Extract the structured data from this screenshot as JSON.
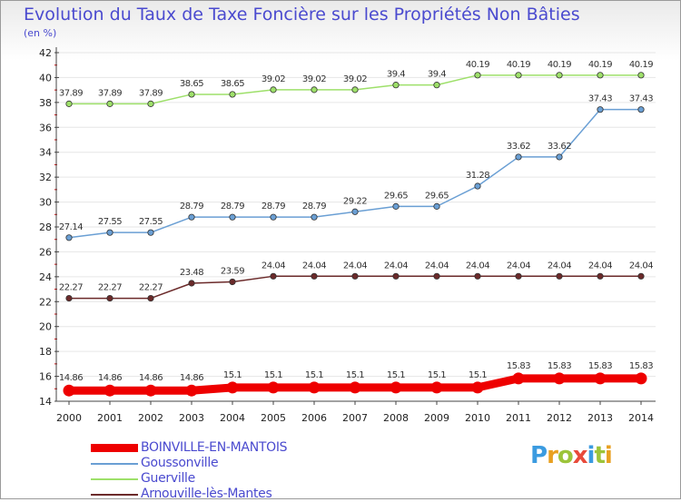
{
  "header": {
    "title": "Evolution du Taux de Taxe Foncière sur les Propriétés Non Bâties",
    "unit": "(en %)"
  },
  "logo": {
    "text": "Proxiti",
    "letter_colors": [
      "#3b9be0",
      "#e8a020",
      "#9cc43a",
      "#e84a3a",
      "#3b9be0",
      "#9cc43a",
      "#e8a020"
    ]
  },
  "colors": {
    "axis": "#444444",
    "grid": "#e6e6e6",
    "minor_tick": "#cc0000"
  },
  "chart_data": {
    "type": "line",
    "title": "Evolution du Taux de Taxe Foncière sur les Propriétés Non Bâties",
    "ylabel": "(en %)",
    "xlabel": "",
    "ylim": [
      14,
      42
    ],
    "yticks": [
      14,
      16,
      18,
      20,
      22,
      24,
      26,
      28,
      30,
      32,
      34,
      36,
      38,
      40,
      42
    ],
    "x": [
      "2000",
      "2001",
      "2002",
      "2003",
      "2004",
      "2005",
      "2006",
      "2007",
      "2008",
      "2009",
      "2010",
      "2011",
      "2012",
      "2013",
      "2014"
    ],
    "legend_position": "bottom-left",
    "grid": true,
    "series": [
      {
        "name": "BOINVILLE-EN-MANTOIS",
        "color": "#ee0000",
        "values": [
          14.86,
          14.86,
          14.86,
          14.86,
          15.1,
          15.1,
          15.1,
          15.1,
          15.1,
          15.1,
          15.1,
          15.83,
          15.83,
          15.83,
          15.83
        ],
        "labels": [
          "14.86",
          "14.86",
          "14.86",
          "14.86",
          "15.1",
          "15.1",
          "15.1",
          "15.1",
          "15.1",
          "15.1",
          "15.1",
          "15.83",
          "15.83",
          "15.83",
          "15.83"
        ]
      },
      {
        "name": "Goussonville",
        "color": "#6a9fd4",
        "values": [
          27.14,
          27.55,
          27.55,
          28.79,
          28.79,
          28.79,
          28.79,
          29.22,
          29.65,
          29.65,
          31.28,
          33.62,
          33.62,
          37.43,
          37.43
        ],
        "labels": [
          "27.14",
          "27.55",
          "27.55",
          "28.79",
          "28.79",
          "28.79",
          "28.79",
          "29.22",
          "29.65",
          "29.65",
          "31.28",
          "33.62",
          "33.62",
          "37.43",
          "37.43"
        ]
      },
      {
        "name": "Guerville",
        "color": "#9ee06a",
        "values": [
          37.89,
          37.89,
          37.89,
          38.65,
          38.65,
          39.02,
          39.02,
          39.02,
          39.4,
          39.4,
          40.19,
          40.19,
          40.19,
          40.19,
          40.19
        ],
        "labels": [
          "37.89",
          "37.89",
          "37.89",
          "38.65",
          "38.65",
          "39.02",
          "39.02",
          "39.02",
          "39.4",
          "39.4",
          "40.19",
          "40.19",
          "40.19",
          "40.19",
          "40.19"
        ]
      },
      {
        "name": "Arnouville-lès-Mantes",
        "color": "#6b2a2a",
        "values": [
          22.27,
          22.27,
          22.27,
          23.48,
          23.59,
          24.04,
          24.04,
          24.04,
          24.04,
          24.04,
          24.04,
          24.04,
          24.04,
          24.04,
          24.04
        ],
        "labels": [
          "22.27",
          "22.27",
          "22.27",
          "23.48",
          "23.59",
          "24.04",
          "24.04",
          "24.04",
          "24.04",
          "24.04",
          "24.04",
          "24.04",
          "24.04",
          "24.04",
          "24.04"
        ]
      }
    ]
  }
}
